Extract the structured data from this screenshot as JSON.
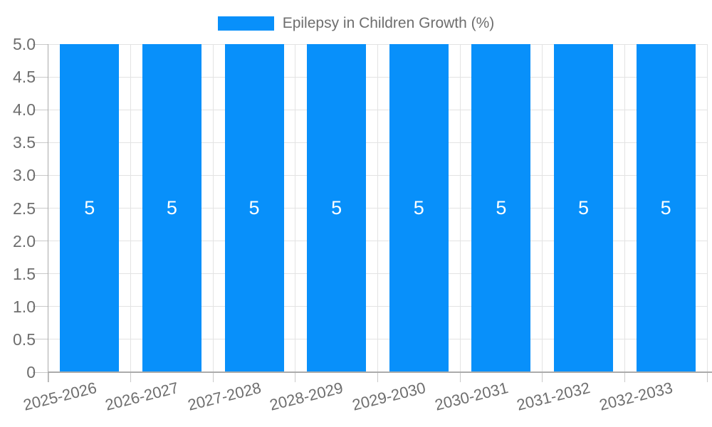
{
  "legend": {
    "label": "Epilepsy in Children Growth (%)"
  },
  "chart_data": {
    "type": "bar",
    "title": "Epilepsy in Children Growth (%)",
    "categories": [
      "2025-2026",
      "2026-2027",
      "2027-2028",
      "2028-2029",
      "2029-2030",
      "2030-2031",
      "2031-2032",
      "2032-2033"
    ],
    "series": [
      {
        "name": "Epilepsy in Children Growth (%)",
        "values": [
          5,
          5,
          5,
          5,
          5,
          5,
          5,
          5
        ]
      }
    ],
    "value_labels": [
      "5",
      "5",
      "5",
      "5",
      "5",
      "5",
      "5",
      "5"
    ],
    "xlabel": "",
    "ylabel": "",
    "ylim": [
      0,
      5
    ],
    "ytick_labels": [
      "5.0",
      "4.5",
      "4.0",
      "3.5",
      "3.0",
      "2.5",
      "2.0",
      "1.5",
      "1.0",
      "0.5",
      "0"
    ],
    "grid": true,
    "legend_position": "top-center",
    "colors": {
      "bar": "#0890fa",
      "grid": "#e3e3e3",
      "tick": "#c9c9c9",
      "axis": "#ababab",
      "text": "#6e6e6e",
      "value_label": "#ffffff",
      "background": "#ffffff"
    }
  }
}
